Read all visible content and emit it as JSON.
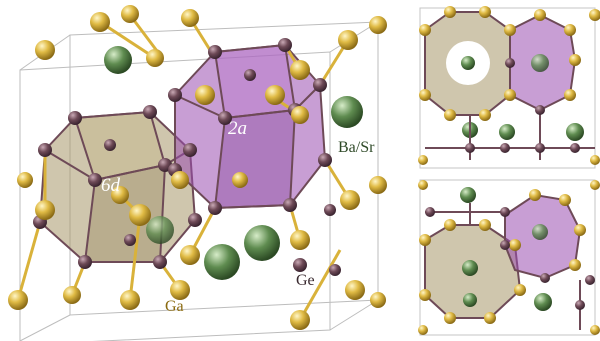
{
  "labels": {
    "cage_2a": "2a",
    "cage_6d": "6d",
    "ba_sr": "Ba/Sr",
    "ge": "Ge",
    "ga": "Ga"
  },
  "colors": {
    "ga_atom": "#d9b23a",
    "ge_atom": "#6e4a57",
    "ba_sr_atom": "#5f8c50",
    "cage_2a_fill": "#9b4fb0",
    "cage_6d_fill": "#9b8a5c",
    "unit_cell_line": "#b8b8b8",
    "label_ga": "#8a6a10",
    "label_ge": "#3a2a30",
    "label_ba_sr": "#2f4a28"
  }
}
